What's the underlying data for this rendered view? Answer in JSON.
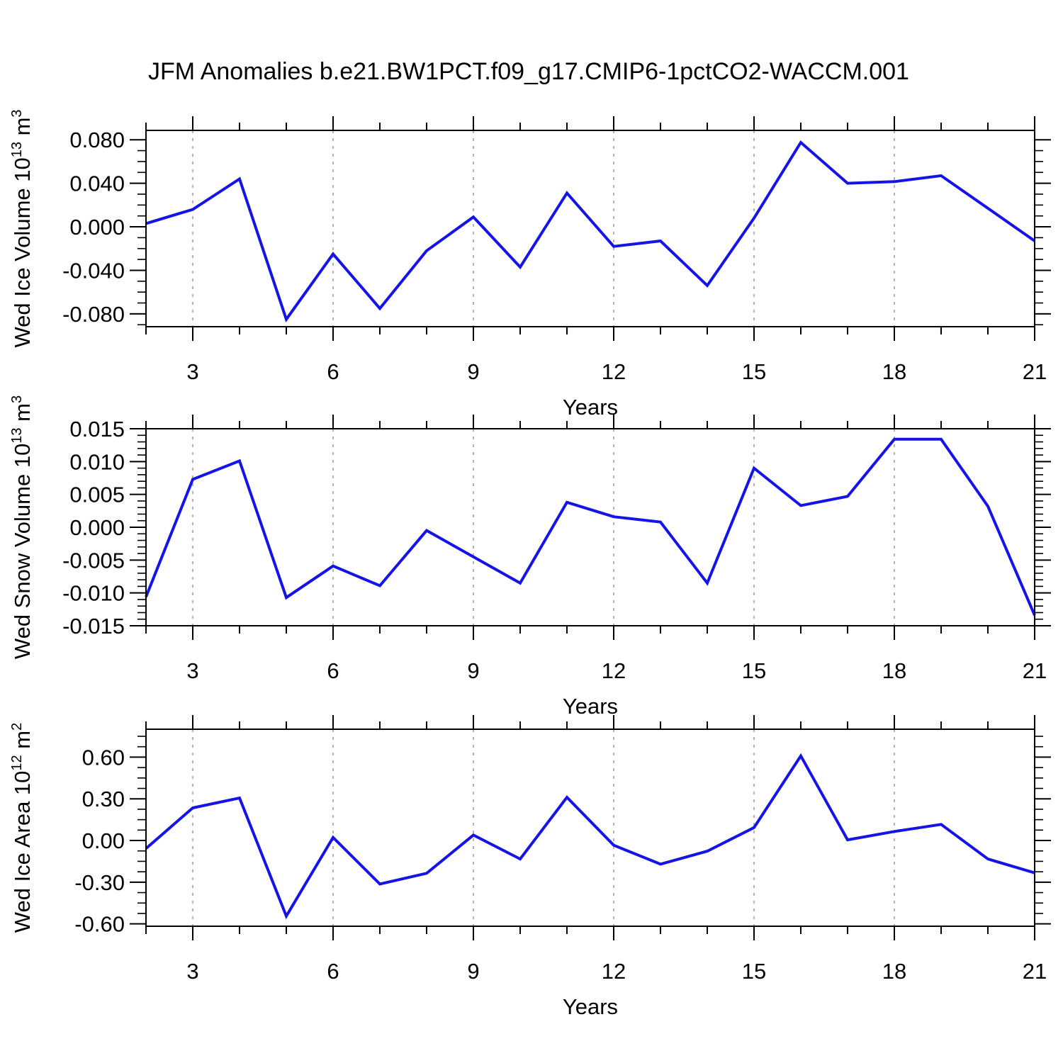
{
  "title": "JFM Anomalies b.e21.BW1PCT.f09_g17.CMIP6-1pctCO2-WACCM.001",
  "colors": {
    "line": "#1414e8",
    "frame": "#000000",
    "grid": "#9a9a9a"
  },
  "x_axis": {
    "label": "Years",
    "min": 2,
    "max": 21,
    "major_ticks": [
      3,
      6,
      9,
      12,
      15,
      18,
      21
    ],
    "minor_step": 1
  },
  "chart_data": [
    {
      "type": "line",
      "name": "wed-ice-volume",
      "ylabel_segments": [
        [
          "n",
          "Wed Ice Volume 10"
        ],
        [
          "s",
          "13"
        ],
        [
          "n",
          " m"
        ],
        [
          "s",
          "3"
        ]
      ],
      "ymin": -0.0918,
      "ymax": 0.0886,
      "y_major_ticks": [
        0.08,
        0.04,
        0.0,
        -0.04,
        -0.08
      ],
      "y_tick_labels": [
        "0.080",
        "0.040",
        "0.000",
        "-0.040",
        "-0.080"
      ],
      "y_minor_step": 0.01,
      "x": [
        2,
        3,
        4,
        5,
        6,
        7,
        8,
        9,
        10,
        11,
        12,
        13,
        14,
        15,
        16,
        17,
        18,
        19,
        20,
        21
      ],
      "values": [
        0.003,
        0.016,
        0.044,
        -0.085,
        -0.025,
        -0.075,
        -0.022,
        0.009,
        -0.037,
        0.031,
        -0.018,
        -0.013,
        -0.054,
        0.008,
        0.0775,
        0.04,
        0.0415,
        0.047,
        0.017,
        -0.013
      ]
    },
    {
      "type": "line",
      "name": "wed-snow-volume",
      "ylabel_segments": [
        [
          "n",
          "Wed Snow Volume 10"
        ],
        [
          "s",
          "13"
        ],
        [
          "n",
          " m"
        ],
        [
          "s",
          "3"
        ]
      ],
      "ymin": -0.015,
      "ymax": 0.015,
      "y_major_ticks": [
        0.015,
        0.01,
        0.005,
        0.0,
        -0.005,
        -0.01,
        -0.015
      ],
      "y_tick_labels": [
        "0.015",
        "0.010",
        "0.005",
        "0.000",
        "-0.005",
        "-0.010",
        "-0.015"
      ],
      "y_minor_step": 0.001,
      "x": [
        2,
        3,
        4,
        5,
        6,
        7,
        8,
        9,
        10,
        11,
        12,
        13,
        14,
        15,
        16,
        17,
        18,
        19,
        20,
        21
      ],
      "values": [
        -0.0106,
        0.0073,
        0.0101,
        -0.0107,
        -0.0059,
        -0.0089,
        -0.0005,
        -0.0045,
        -0.0085,
        0.0038,
        0.0016,
        0.0008,
        -0.0085,
        0.009,
        0.0033,
        0.0047,
        0.0134,
        0.0134,
        0.0032,
        -0.0134
      ]
    },
    {
      "type": "line",
      "name": "wed-ice-area",
      "ylabel_segments": [
        [
          "n",
          "Wed Ice Area 10"
        ],
        [
          "s",
          "12"
        ],
        [
          "n",
          " m"
        ],
        [
          "s",
          "2"
        ]
      ],
      "ymin": -0.617,
      "ymax": 0.801,
      "y_major_ticks": [
        0.6,
        0.3,
        0.0,
        -0.3,
        -0.6
      ],
      "y_tick_labels": [
        "0.60",
        "0.30",
        "0.00",
        "-0.30",
        "-0.60"
      ],
      "y_minor_step": 0.075,
      "x": [
        2,
        3,
        4,
        5,
        6,
        7,
        8,
        9,
        10,
        11,
        12,
        13,
        14,
        15,
        16,
        17,
        18,
        19,
        20,
        21
      ],
      "values": [
        -0.058,
        0.235,
        0.306,
        -0.544,
        0.022,
        -0.313,
        -0.236,
        0.039,
        -0.133,
        0.311,
        -0.034,
        -0.17,
        -0.077,
        0.093,
        0.609,
        0.005,
        0.065,
        0.116,
        -0.133,
        -0.233
      ]
    }
  ]
}
